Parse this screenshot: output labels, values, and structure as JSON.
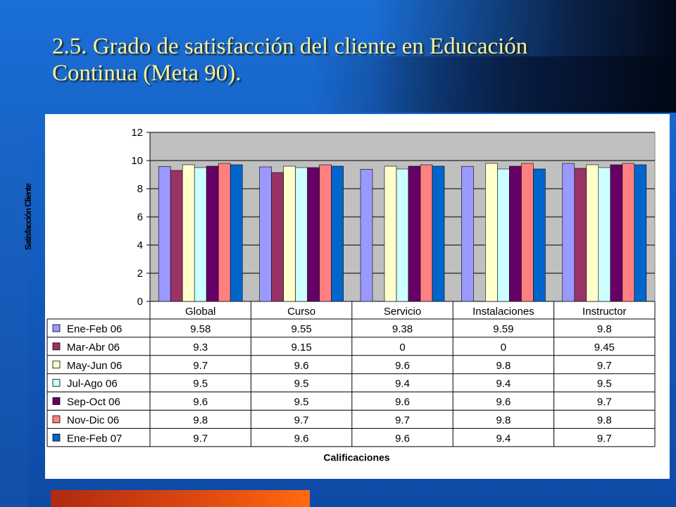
{
  "slide": {
    "title": "2.5. Grado de satisfacción del cliente en Educación Continua (Meta 90)."
  },
  "colors": {
    "plot_background": "#c0c0c0",
    "gridline": "#000000"
  },
  "chart_data": {
    "type": "bar",
    "categories": [
      "Global",
      "Curso",
      "Servicio",
      "Instalaciones",
      "Instructor"
    ],
    "series": [
      {
        "name": "Ene-Feb 06",
        "color": "#9999ff",
        "values": [
          9.58,
          9.55,
          9.38,
          9.59,
          9.8
        ]
      },
      {
        "name": "Mar-Abr 06",
        "color": "#993366",
        "values": [
          9.3,
          9.15,
          0,
          0,
          9.45
        ]
      },
      {
        "name": "May-Jun 06",
        "color": "#ffffcc",
        "values": [
          9.7,
          9.6,
          9.6,
          9.8,
          9.7
        ]
      },
      {
        "name": "Jul-Ago 06",
        "color": "#ccffff",
        "values": [
          9.5,
          9.5,
          9.4,
          9.4,
          9.5
        ]
      },
      {
        "name": "Sep-Oct 06",
        "color": "#660066",
        "values": [
          9.6,
          9.5,
          9.6,
          9.6,
          9.7
        ]
      },
      {
        "name": "Nov-Dic 06",
        "color": "#ff8080",
        "values": [
          9.8,
          9.7,
          9.7,
          9.8,
          9.8
        ]
      },
      {
        "name": "Ene-Feb 07",
        "color": "#0066cc",
        "values": [
          9.7,
          9.6,
          9.6,
          9.4,
          9.7
        ]
      }
    ],
    "table_labels": [
      [
        "9.58",
        "9.55",
        "9.38",
        "9.59",
        "9.8"
      ],
      [
        "9.3",
        "9.15",
        "0",
        "0",
        "9.45"
      ],
      [
        "9.7",
        "9.6",
        "9.6",
        "9.8",
        "9.7"
      ],
      [
        "9.5",
        "9.5",
        "9.4",
        "9.4",
        "9.5"
      ],
      [
        "9.6",
        "9.5",
        "9.6",
        "9.6",
        "9.7"
      ],
      [
        "9.8",
        "9.7",
        "9.7",
        "9.8",
        "9.8"
      ],
      [
        "9.7",
        "9.6",
        "9.6",
        "9.4",
        "9.7"
      ]
    ],
    "ylabel": "Satisfacción Cliente",
    "xlabel": "Calificaciones",
    "ylim": [
      0,
      12
    ],
    "yticks": [
      "0",
      "2",
      "4",
      "6",
      "8",
      "10",
      "12"
    ],
    "grid": true,
    "legend": "data-table"
  }
}
